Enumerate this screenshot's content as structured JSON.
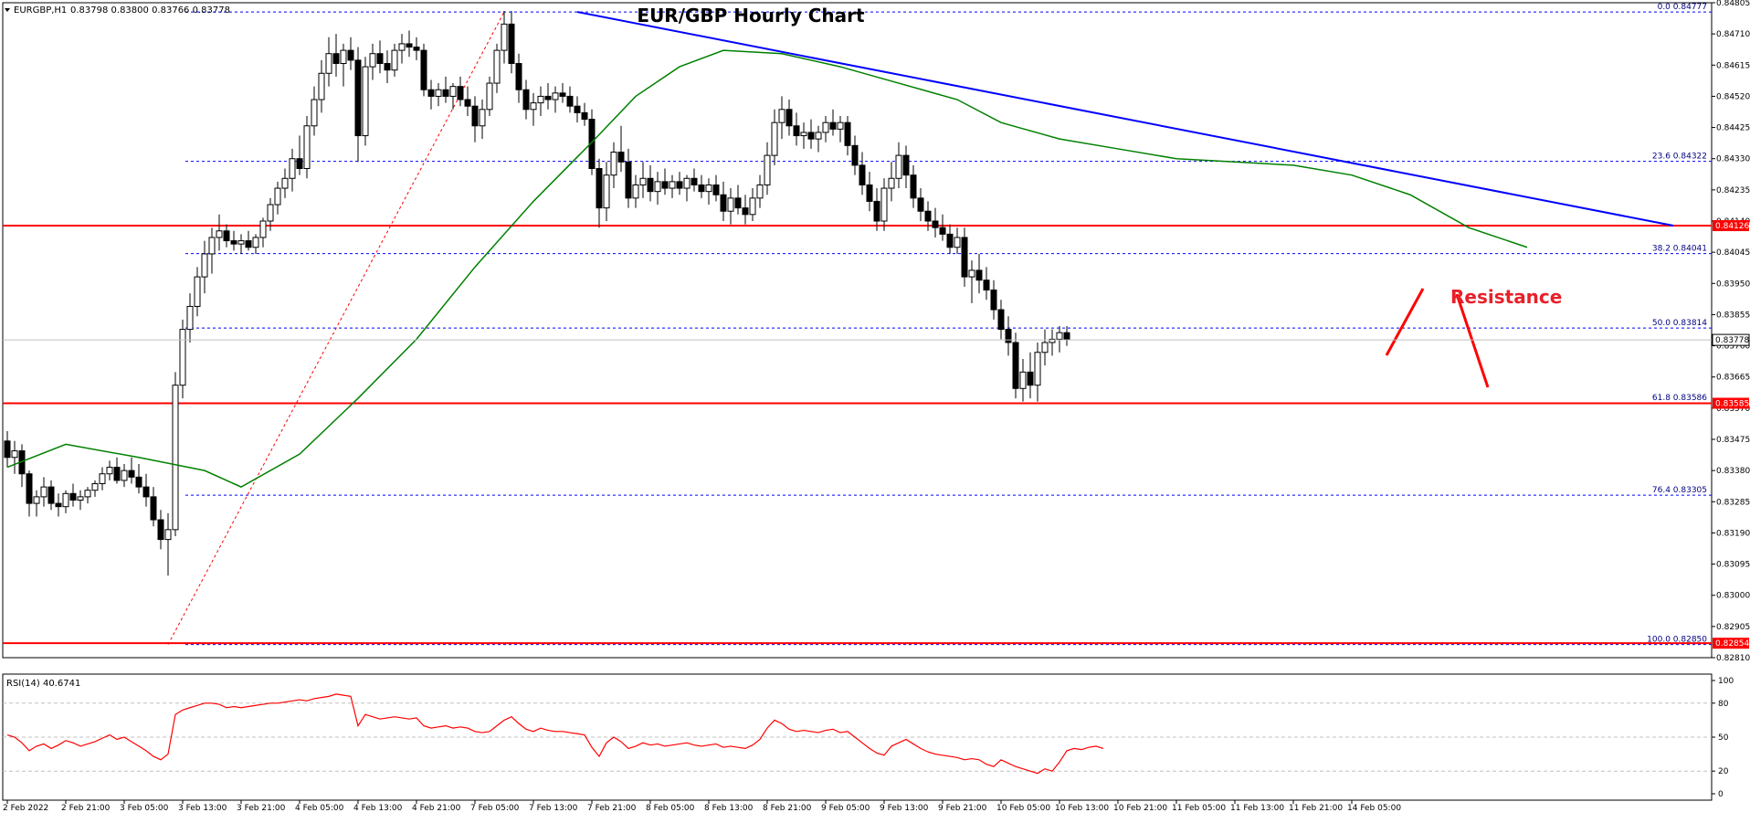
{
  "header": {
    "symbol_label": "EURGBP,H1",
    "ohlc_label": "0.83798 0.83800 0.83766 0.83778"
  },
  "chart_data": {
    "type": "candlestick",
    "title": "EUR/GBP Hourly Chart",
    "price_axis": {
      "ylim": [
        0.8281,
        0.84805
      ],
      "tick_labels": [
        "0.84805",
        "0.84710",
        "0.84615",
        "0.84520",
        "0.84425",
        "0.84330",
        "0.84235",
        "0.84140",
        "0.84045",
        "0.83950",
        "0.83855",
        "0.83760",
        "0.83665",
        "0.83570",
        "0.83475",
        "0.83380",
        "0.83285",
        "0.83190",
        "0.83095",
        "0.83000",
        "0.82905",
        "0.82810"
      ]
    },
    "x_axis_labels": [
      "2 Feb 2022",
      "2 Feb 21:00",
      "3 Feb 05:00",
      "3 Feb 13:00",
      "3 Feb 21:00",
      "4 Feb 05:00",
      "4 Feb 13:00",
      "4 Feb 21:00",
      "7 Feb 05:00",
      "7 Feb 13:00",
      "7 Feb 21:00",
      "8 Feb 05:00",
      "8 Feb 13:00",
      "8 Feb 21:00",
      "9 Feb 05:00",
      "9 Feb 13:00",
      "9 Feb 21:00",
      "10 Feb 05:00",
      "10 Feb 13:00",
      "10 Feb 21:00",
      "11 Feb 05:00",
      "11 Feb 13:00",
      "11 Feb 21:00",
      "14 Feb 05:00"
    ],
    "current_price": 0.83778,
    "current_price_label": "0.83778",
    "fibonacci_levels": [
      {
        "ratio": "0.0",
        "price": 0.84777,
        "label": "0.84777"
      },
      {
        "ratio": "23.6",
        "price": 0.84322,
        "label": "0.84322"
      },
      {
        "ratio": "38.2",
        "price": 0.84041,
        "label": "0.84041"
      },
      {
        "ratio": "50.0",
        "price": 0.83814,
        "label": "0.83814"
      },
      {
        "ratio": "61.8",
        "price": 0.83586,
        "label": "0.83586"
      },
      {
        "ratio": "76.4",
        "price": 0.83305,
        "label": "0.83305"
      },
      {
        "ratio": "100.0",
        "price": 0.8285,
        "label": "0.82850"
      }
    ],
    "horizontal_levels": [
      {
        "price": 0.84126,
        "label": "0.84126"
      },
      {
        "price": 0.83585,
        "label": "0.83585"
      },
      {
        "price": 0.82854,
        "label": "0.82854"
      }
    ],
    "annotation": "Resistance",
    "trendline": {
      "from": {
        "x": 78,
        "price": 0.84777
      },
      "to": {
        "x": 228,
        "price": 0.84126
      }
    },
    "moving_average": [
      [
        0,
        0.8339
      ],
      [
        8,
        0.8346
      ],
      [
        18,
        0.8342
      ],
      [
        27,
        0.8338
      ],
      [
        32,
        0.8333
      ],
      [
        40,
        0.8343
      ],
      [
        48,
        0.836
      ],
      [
        56,
        0.8378
      ],
      [
        64,
        0.84
      ],
      [
        72,
        0.842
      ],
      [
        80,
        0.8438
      ],
      [
        86,
        0.8452
      ],
      [
        92,
        0.8461
      ],
      [
        98,
        0.8466
      ],
      [
        106,
        0.8465
      ],
      [
        114,
        0.8461
      ],
      [
        122,
        0.8456
      ],
      [
        130,
        0.8451
      ],
      [
        136,
        0.8444
      ],
      [
        144,
        0.8439
      ],
      [
        152,
        0.8436
      ],
      [
        160,
        0.8433
      ],
      [
        168,
        0.8432
      ],
      [
        176,
        0.8431
      ],
      [
        184,
        0.8428
      ],
      [
        192,
        0.8422
      ],
      [
        200,
        0.8412
      ],
      [
        208,
        0.8406
      ]
    ],
    "candles": [
      [
        0.8347,
        0.835,
        0.8339,
        0.8342
      ],
      [
        0.8342,
        0.8347,
        0.8337,
        0.8344
      ],
      [
        0.8344,
        0.8346,
        0.8333,
        0.8337
      ],
      [
        0.8337,
        0.8338,
        0.8324,
        0.8328
      ],
      [
        0.8328,
        0.8332,
        0.8324,
        0.833
      ],
      [
        0.833,
        0.8336,
        0.8327,
        0.8333
      ],
      [
        0.8333,
        0.8335,
        0.8326,
        0.8328
      ],
      [
        0.8328,
        0.8331,
        0.8324,
        0.8327
      ],
      [
        0.8327,
        0.8332,
        0.8325,
        0.8331
      ],
      [
        0.8331,
        0.8334,
        0.8327,
        0.8329
      ],
      [
        0.8329,
        0.8332,
        0.8326,
        0.833
      ],
      [
        0.833,
        0.8333,
        0.8328,
        0.8332
      ],
      [
        0.8332,
        0.8335,
        0.833,
        0.8334
      ],
      [
        0.8334,
        0.8339,
        0.8332,
        0.8337
      ],
      [
        0.8337,
        0.8341,
        0.8335,
        0.8339
      ],
      [
        0.8339,
        0.8342,
        0.8334,
        0.8335
      ],
      [
        0.8335,
        0.834,
        0.8333,
        0.8338
      ],
      [
        0.8338,
        0.8342,
        0.8334,
        0.8336
      ],
      [
        0.8336,
        0.834,
        0.8331,
        0.8333
      ],
      [
        0.8333,
        0.8337,
        0.8327,
        0.833
      ],
      [
        0.833,
        0.8333,
        0.8321,
        0.8323
      ],
      [
        0.8323,
        0.8326,
        0.8314,
        0.8317
      ],
      [
        0.8317,
        0.8325,
        0.8306,
        0.832
      ],
      [
        0.832,
        0.8368,
        0.8318,
        0.8364
      ],
      [
        0.8364,
        0.8384,
        0.836,
        0.8381
      ],
      [
        0.8381,
        0.8392,
        0.8377,
        0.8388
      ],
      [
        0.8388,
        0.84,
        0.8385,
        0.8397
      ],
      [
        0.8397,
        0.8408,
        0.8392,
        0.8404
      ],
      [
        0.8404,
        0.8412,
        0.8398,
        0.8409
      ],
      [
        0.8409,
        0.8416,
        0.8405,
        0.8411
      ],
      [
        0.8411,
        0.8413,
        0.8406,
        0.8408
      ],
      [
        0.8408,
        0.8411,
        0.8405,
        0.8407
      ],
      [
        0.8407,
        0.841,
        0.8404,
        0.8408
      ],
      [
        0.8408,
        0.8411,
        0.8405,
        0.8406
      ],
      [
        0.8406,
        0.841,
        0.8404,
        0.8409
      ],
      [
        0.8409,
        0.8415,
        0.8406,
        0.8414
      ],
      [
        0.8414,
        0.8421,
        0.8411,
        0.8419
      ],
      [
        0.8419,
        0.8426,
        0.8416,
        0.8424
      ],
      [
        0.8424,
        0.843,
        0.8421,
        0.8427
      ],
      [
        0.8427,
        0.8436,
        0.8423,
        0.8433
      ],
      [
        0.8433,
        0.844,
        0.8428,
        0.843
      ],
      [
        0.843,
        0.8446,
        0.8427,
        0.8443
      ],
      [
        0.8443,
        0.8455,
        0.844,
        0.8451
      ],
      [
        0.8451,
        0.8463,
        0.8447,
        0.8459
      ],
      [
        0.8459,
        0.847,
        0.8455,
        0.8465
      ],
      [
        0.8465,
        0.8471,
        0.8458,
        0.8462
      ],
      [
        0.8462,
        0.8468,
        0.8455,
        0.8466
      ],
      [
        0.8466,
        0.847,
        0.846,
        0.8463
      ],
      [
        0.8463,
        0.8467,
        0.8432,
        0.844
      ],
      [
        0.844,
        0.8464,
        0.8437,
        0.8461
      ],
      [
        0.8461,
        0.8468,
        0.8457,
        0.8465
      ],
      [
        0.8465,
        0.8469,
        0.8459,
        0.8462
      ],
      [
        0.8462,
        0.8466,
        0.8456,
        0.846
      ],
      [
        0.846,
        0.8468,
        0.8458,
        0.8466
      ],
      [
        0.8466,
        0.8471,
        0.8462,
        0.8468
      ],
      [
        0.8468,
        0.8472,
        0.8464,
        0.8467
      ],
      [
        0.8467,
        0.847,
        0.8463,
        0.8466
      ],
      [
        0.8466,
        0.8468,
        0.8452,
        0.8454
      ],
      [
        0.8454,
        0.8457,
        0.8448,
        0.8452
      ],
      [
        0.8452,
        0.8456,
        0.8449,
        0.8454
      ],
      [
        0.8454,
        0.8458,
        0.845,
        0.8452
      ],
      [
        0.8452,
        0.8456,
        0.8448,
        0.8455
      ],
      [
        0.8455,
        0.8458,
        0.8449,
        0.8451
      ],
      [
        0.8451,
        0.8455,
        0.8446,
        0.8449
      ],
      [
        0.8449,
        0.8452,
        0.8438,
        0.8443
      ],
      [
        0.8443,
        0.8451,
        0.8439,
        0.8448
      ],
      [
        0.8448,
        0.8458,
        0.8446,
        0.8456
      ],
      [
        0.8456,
        0.8468,
        0.8453,
        0.8466
      ],
      [
        0.8466,
        0.8478,
        0.8462,
        0.8474
      ],
      [
        0.8474,
        0.8478,
        0.8459,
        0.8462
      ],
      [
        0.8462,
        0.8465,
        0.845,
        0.8454
      ],
      [
        0.8454,
        0.8457,
        0.8445,
        0.8448
      ],
      [
        0.8448,
        0.8453,
        0.8443,
        0.845
      ],
      [
        0.845,
        0.8455,
        0.8446,
        0.8452
      ],
      [
        0.8452,
        0.8456,
        0.8448,
        0.8451
      ],
      [
        0.8451,
        0.8455,
        0.8447,
        0.8453
      ],
      [
        0.8453,
        0.8456,
        0.845,
        0.8452
      ],
      [
        0.8452,
        0.8455,
        0.8447,
        0.8449
      ],
      [
        0.8449,
        0.8452,
        0.8444,
        0.8447
      ],
      [
        0.8447,
        0.845,
        0.8443,
        0.8445
      ],
      [
        0.8445,
        0.8448,
        0.8428,
        0.843
      ],
      [
        0.843,
        0.8433,
        0.8412,
        0.8418
      ],
      [
        0.8418,
        0.8432,
        0.8414,
        0.8428
      ],
      [
        0.8428,
        0.8438,
        0.8424,
        0.8435
      ],
      [
        0.8435,
        0.8443,
        0.8429,
        0.8432
      ],
      [
        0.8432,
        0.8436,
        0.8418,
        0.8421
      ],
      [
        0.8421,
        0.8428,
        0.8418,
        0.8425
      ],
      [
        0.8425,
        0.8432,
        0.8421,
        0.8427
      ],
      [
        0.8427,
        0.8431,
        0.842,
        0.8423
      ],
      [
        0.8423,
        0.8429,
        0.8419,
        0.8426
      ],
      [
        0.8426,
        0.843,
        0.8422,
        0.8424
      ],
      [
        0.8424,
        0.8428,
        0.8421,
        0.8426
      ],
      [
        0.8426,
        0.8429,
        0.8422,
        0.8424
      ],
      [
        0.8424,
        0.8428,
        0.842,
        0.8427
      ],
      [
        0.8427,
        0.843,
        0.8423,
        0.8425
      ],
      [
        0.8425,
        0.8428,
        0.8421,
        0.8423
      ],
      [
        0.8423,
        0.8427,
        0.8419,
        0.8425
      ],
      [
        0.8425,
        0.8428,
        0.842,
        0.8422
      ],
      [
        0.8422,
        0.8426,
        0.8414,
        0.8417
      ],
      [
        0.8417,
        0.8424,
        0.8413,
        0.8421
      ],
      [
        0.8421,
        0.8425,
        0.8416,
        0.8418
      ],
      [
        0.8418,
        0.8422,
        0.8413,
        0.8416
      ],
      [
        0.8416,
        0.8424,
        0.8414,
        0.8421
      ],
      [
        0.8421,
        0.8428,
        0.8418,
        0.8425
      ],
      [
        0.8425,
        0.8438,
        0.8422,
        0.8434
      ],
      [
        0.8434,
        0.8448,
        0.8431,
        0.8444
      ],
      [
        0.8444,
        0.8452,
        0.8439,
        0.8448
      ],
      [
        0.8448,
        0.8451,
        0.844,
        0.8443
      ],
      [
        0.8443,
        0.8447,
        0.8437,
        0.844
      ],
      [
        0.844,
        0.8444,
        0.8436,
        0.8441
      ],
      [
        0.8441,
        0.8445,
        0.8436,
        0.8439
      ],
      [
        0.8439,
        0.8443,
        0.8435,
        0.8441
      ],
      [
        0.8441,
        0.8446,
        0.8438,
        0.8444
      ],
      [
        0.8444,
        0.8448,
        0.844,
        0.8442
      ],
      [
        0.8442,
        0.8446,
        0.8438,
        0.8444
      ],
      [
        0.8444,
        0.8446,
        0.8434,
        0.8437
      ],
      [
        0.8437,
        0.844,
        0.8428,
        0.8431
      ],
      [
        0.8431,
        0.8435,
        0.8422,
        0.8425
      ],
      [
        0.8425,
        0.8429,
        0.8417,
        0.842
      ],
      [
        0.842,
        0.8424,
        0.8411,
        0.8414
      ],
      [
        0.8414,
        0.8427,
        0.8411,
        0.8424
      ],
      [
        0.8424,
        0.8432,
        0.842,
        0.8427
      ],
      [
        0.8427,
        0.8438,
        0.8424,
        0.8434
      ],
      [
        0.8434,
        0.8437,
        0.8424,
        0.8428
      ],
      [
        0.8428,
        0.8431,
        0.8418,
        0.8421
      ],
      [
        0.8421,
        0.8424,
        0.8414,
        0.8417
      ],
      [
        0.8417,
        0.842,
        0.8411,
        0.8414
      ],
      [
        0.8414,
        0.8418,
        0.8409,
        0.8412
      ],
      [
        0.8412,
        0.8416,
        0.8408,
        0.841
      ],
      [
        0.841,
        0.8413,
        0.8404,
        0.8406
      ],
      [
        0.8406,
        0.8412,
        0.8404,
        0.8409
      ],
      [
        0.8409,
        0.8412,
        0.8394,
        0.8397
      ],
      [
        0.8397,
        0.8402,
        0.8389,
        0.8399
      ],
      [
        0.8399,
        0.8404,
        0.8392,
        0.8396
      ],
      [
        0.8396,
        0.84,
        0.839,
        0.8393
      ],
      [
        0.8393,
        0.8396,
        0.8384,
        0.8387
      ],
      [
        0.8387,
        0.839,
        0.8378,
        0.8381
      ],
      [
        0.8381,
        0.8385,
        0.8373,
        0.8377
      ],
      [
        0.8377,
        0.838,
        0.836,
        0.8363
      ],
      [
        0.8363,
        0.8372,
        0.8359,
        0.8368
      ],
      [
        0.8368,
        0.8374,
        0.836,
        0.8364
      ],
      [
        0.8364,
        0.8377,
        0.8359,
        0.8374
      ],
      [
        0.8374,
        0.8381,
        0.837,
        0.8377
      ],
      [
        0.8377,
        0.8381,
        0.8373,
        0.8378
      ],
      [
        0.8378,
        0.8382,
        0.8374,
        0.838
      ],
      [
        0.838,
        0.8382,
        0.8376,
        0.8378
      ]
    ]
  },
  "rsi": {
    "label": "RSI(14) 40.6741",
    "value": 40.6741,
    "levels": [
      80,
      50,
      20
    ],
    "tick_labels": [
      "100",
      "80",
      "50",
      "20",
      "0"
    ],
    "values": [
      52,
      50,
      45,
      38,
      42,
      44,
      40,
      43,
      47,
      45,
      42,
      44,
      46,
      49,
      52,
      48,
      50,
      46,
      42,
      38,
      33,
      30,
      35,
      70,
      74,
      76,
      78,
      80,
      80,
      79,
      76,
      77,
      76,
      77,
      78,
      79,
      80,
      80,
      81,
      82,
      83,
      82,
      84,
      85,
      86,
      88,
      87,
      86,
      60,
      70,
      68,
      66,
      67,
      68,
      67,
      66,
      67,
      60,
      58,
      59,
      60,
      58,
      59,
      58,
      55,
      54,
      55,
      60,
      65,
      68,
      62,
      57,
      55,
      58,
      56,
      55,
      55,
      54,
      53,
      52,
      41,
      33,
      45,
      50,
      46,
      40,
      42,
      45,
      43,
      44,
      42,
      43,
      44,
      45,
      43,
      42,
      43,
      44,
      41,
      42,
      41,
      40,
      43,
      48,
      58,
      65,
      62,
      57,
      55,
      56,
      55,
      54,
      56,
      57,
      54,
      55,
      50,
      45,
      40,
      36,
      34,
      42,
      45,
      48,
      44,
      40,
      37,
      35,
      34,
      33,
      32,
      30,
      31,
      30,
      26,
      24,
      30,
      27,
      24,
      22,
      20,
      18,
      22,
      20,
      28,
      38,
      40,
      39,
      41,
      42,
      40
    ]
  },
  "colors": {
    "candle_bull": "#ffffff",
    "candle_bear": "#000000",
    "fib_line": "#0000ff",
    "support_resistance": "#ff0000",
    "trendline": "#0000ff",
    "moving_average": "#008000",
    "rsi_line": "#ff0000",
    "grid": "#c0c0c0"
  }
}
